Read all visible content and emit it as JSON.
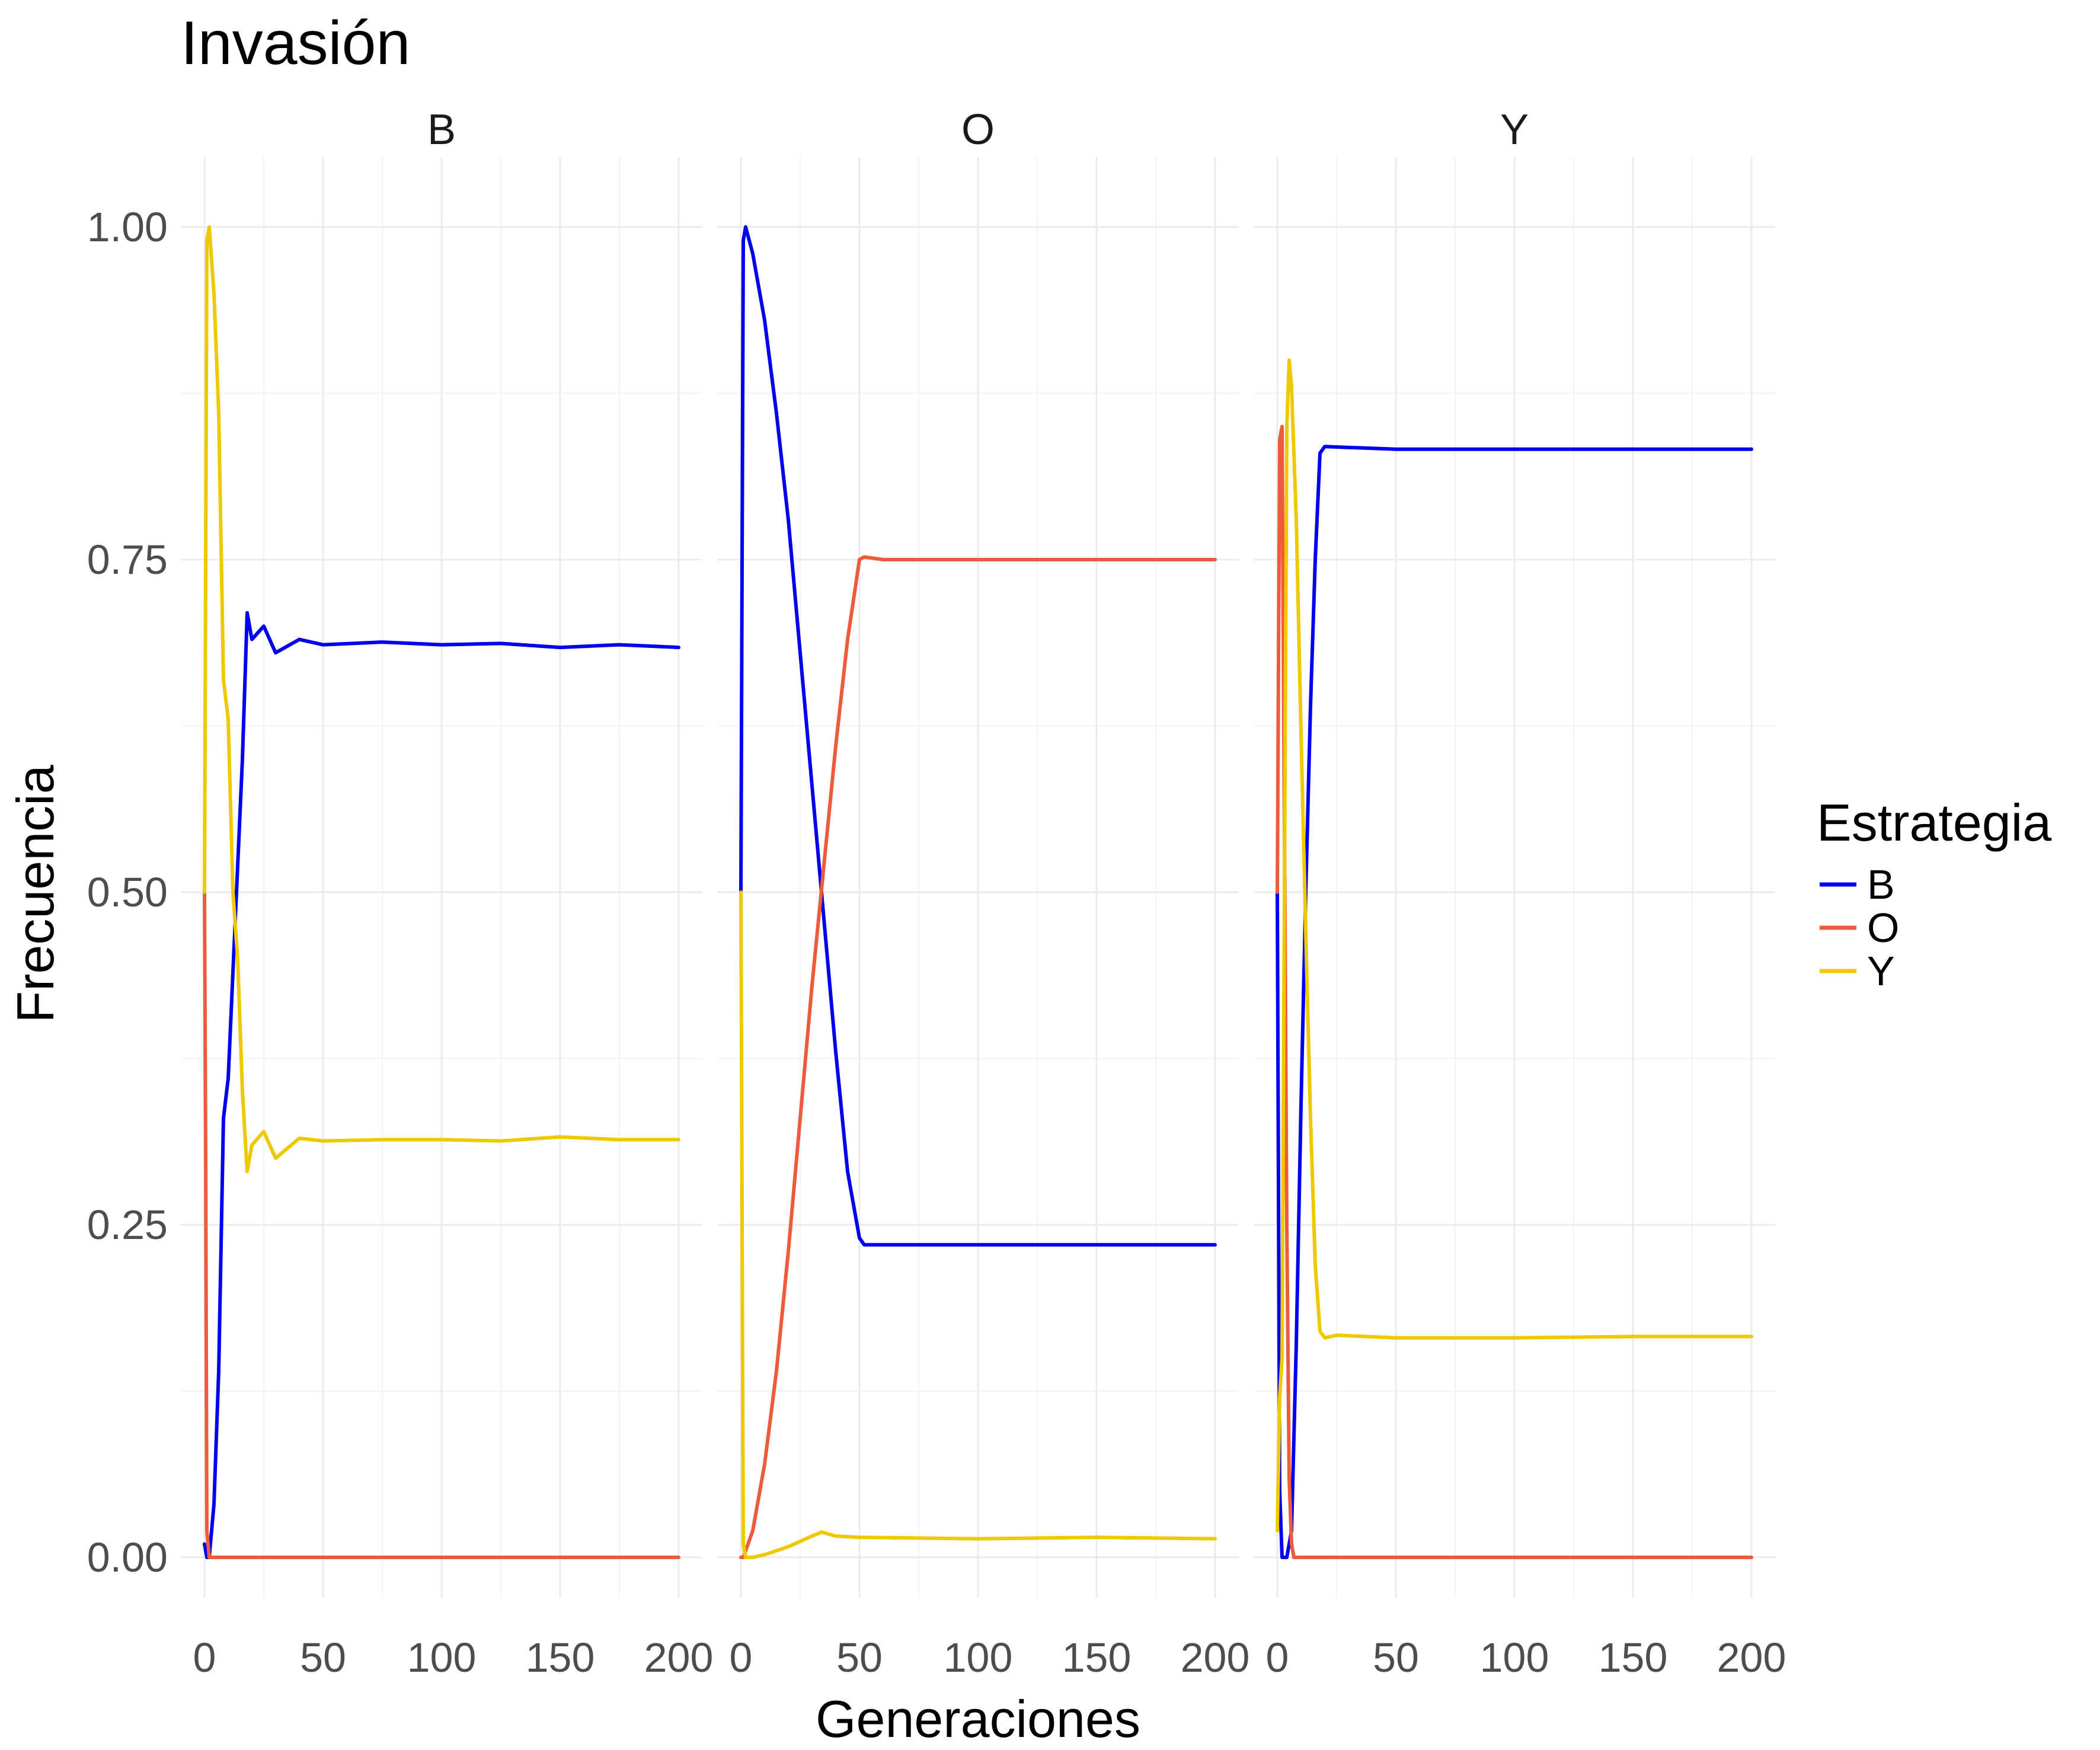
{
  "chart_data": {
    "type": "line",
    "title": "Invasión",
    "xlabel": "Generaciones",
    "ylabel": "Frecuencia",
    "xlim": [
      0,
      200
    ],
    "ylim": [
      0,
      1
    ],
    "x_ticks": [
      "0",
      "50",
      "100",
      "150",
      "200"
    ],
    "y_ticks": [
      "0.00",
      "0.25",
      "0.50",
      "0.75",
      "1.00"
    ],
    "grid": true,
    "legend": {
      "title": "Estrategia",
      "position": "right",
      "entries": [
        {
          "name": "B",
          "color": "#0000ee"
        },
        {
          "name": "O",
          "color": "#ee5a3c"
        },
        {
          "name": "Y",
          "color": "#eec900"
        }
      ]
    },
    "panels": [
      {
        "label": "B",
        "series": [
          {
            "name": "B",
            "color": "#0000ee",
            "x": [
              0,
              1,
              2,
              4,
              6,
              8,
              10,
              12,
              14,
              16,
              18,
              20,
              25,
              30,
              40,
              50,
              75,
              100,
              125,
              150,
              175,
              200
            ],
            "y": [
              0.01,
              0.0,
              0.0,
              0.04,
              0.14,
              0.33,
              0.36,
              0.44,
              0.52,
              0.6,
              0.71,
              0.69,
              0.7,
              0.68,
              0.69,
              0.686,
              0.688,
              0.686,
              0.687,
              0.684,
              0.686,
              0.684
            ]
          },
          {
            "name": "O",
            "color": "#ee5a3c",
            "x": [
              0,
              0.5,
              1,
              2,
              4,
              200
            ],
            "y": [
              0.5,
              0.3,
              0.02,
              0.0,
              0.0,
              0.0
            ]
          },
          {
            "name": "Y",
            "color": "#eec900",
            "x": [
              0,
              1,
              2,
              4,
              6,
              8,
              10,
              12,
              14,
              16,
              18,
              20,
              25,
              30,
              40,
              50,
              75,
              100,
              125,
              150,
              175,
              200
            ],
            "y": [
              0.5,
              0.99,
              1.0,
              0.95,
              0.86,
              0.66,
              0.63,
              0.5,
              0.45,
              0.35,
              0.29,
              0.31,
              0.32,
              0.3,
              0.315,
              0.313,
              0.314,
              0.314,
              0.313,
              0.316,
              0.314,
              0.314
            ]
          }
        ]
      },
      {
        "label": "O",
        "series": [
          {
            "name": "B",
            "color": "#0000ee",
            "x": [
              0,
              1,
              2,
              5,
              10,
              15,
              20,
              25,
              30,
              35,
              40,
              45,
              50,
              52,
              60,
              100,
              150,
              200
            ],
            "y": [
              0.5,
              0.99,
              1.0,
              0.98,
              0.93,
              0.86,
              0.78,
              0.68,
              0.58,
              0.48,
              0.38,
              0.29,
              0.24,
              0.235,
              0.235,
              0.235,
              0.235,
              0.235
            ]
          },
          {
            "name": "O",
            "color": "#ee5a3c",
            "x": [
              0,
              1,
              2,
              5,
              10,
              15,
              20,
              25,
              30,
              35,
              40,
              45,
              50,
              52,
              60,
              100,
              150,
              200
            ],
            "y": [
              0.0,
              0.0,
              0.005,
              0.02,
              0.07,
              0.14,
              0.23,
              0.33,
              0.43,
              0.52,
              0.61,
              0.69,
              0.75,
              0.752,
              0.75,
              0.75,
              0.75,
              0.75
            ]
          },
          {
            "name": "Y",
            "color": "#eec900",
            "x": [
              0,
              1,
              2,
              5,
              10,
              15,
              20,
              25,
              30,
              34,
              40,
              50,
              100,
              150,
              200
            ],
            "y": [
              0.5,
              0.01,
              0.0,
              0.0,
              0.002,
              0.005,
              0.008,
              0.012,
              0.016,
              0.019,
              0.016,
              0.015,
              0.014,
              0.015,
              0.014
            ]
          }
        ]
      },
      {
        "label": "Y",
        "series": [
          {
            "name": "B",
            "color": "#0000ee",
            "x": [
              0,
              1,
              2,
              4,
              6,
              8,
              10,
              12,
              14,
              16,
              18,
              20,
              50,
              100,
              150,
              200
            ],
            "y": [
              0.5,
              0.05,
              0.0,
              0.0,
              0.02,
              0.16,
              0.34,
              0.5,
              0.64,
              0.75,
              0.83,
              0.835,
              0.833,
              0.833,
              0.833,
              0.833
            ]
          },
          {
            "name": "O",
            "color": "#ee5a3c",
            "x": [
              0,
              1,
              2,
              3,
              4,
              5,
              6,
              7,
              8,
              200
            ],
            "y": [
              0.5,
              0.84,
              0.85,
              0.55,
              0.25,
              0.06,
              0.01,
              0.0,
              0.0,
              0.0
            ]
          },
          {
            "name": "Y",
            "color": "#eec900",
            "x": [
              0,
              1,
              2,
              3,
              4,
              5,
              6,
              8,
              10,
              12,
              14,
              16,
              18,
              20,
              25,
              50,
              100,
              150,
              200
            ],
            "y": [
              0.02,
              0.12,
              0.15,
              0.5,
              0.85,
              0.9,
              0.88,
              0.78,
              0.62,
              0.47,
              0.33,
              0.22,
              0.17,
              0.165,
              0.167,
              0.165,
              0.165,
              0.166,
              0.166
            ]
          }
        ]
      }
    ]
  }
}
